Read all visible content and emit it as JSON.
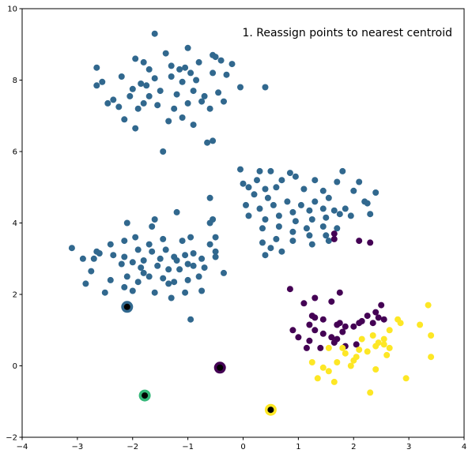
{
  "chart_data": {
    "type": "scatter",
    "title": "",
    "xlabel": "",
    "ylabel": "",
    "xlim": [
      -4,
      4
    ],
    "ylim": [
      -2,
      10
    ],
    "xticks": [
      -4,
      -3,
      -2,
      -1,
      0,
      1,
      2,
      3,
      4
    ],
    "yticks": [
      -2,
      0,
      2,
      4,
      6,
      8,
      10
    ],
    "grid": false,
    "annotation": "1. Reassign points to nearest centroid",
    "colors": {
      "cluster_blue": "#31688e",
      "cluster_purple": "#440154",
      "cluster_yellow": "#fde725",
      "cluster_green": "#35b779",
      "centroid_marker": "#000000"
    },
    "series": [
      {
        "color": "#31688e",
        "points": [
          [
            -1.6,
            9.3
          ],
          [
            -1.0,
            8.9
          ],
          [
            -1.95,
            8.6
          ],
          [
            -1.4,
            8.75
          ],
          [
            -0.5,
            8.65
          ],
          [
            -0.55,
            8.7
          ],
          [
            -0.2,
            8.45
          ],
          [
            -2.65,
            8.35
          ],
          [
            -1.8,
            8.5
          ],
          [
            -1.3,
            8.4
          ],
          [
            -0.8,
            8.5
          ],
          [
            -0.4,
            8.55
          ],
          [
            -1.7,
            8.3
          ],
          [
            -1.05,
            8.35
          ],
          [
            -2.55,
            7.95
          ],
          [
            -2.2,
            8.1
          ],
          [
            -1.85,
            7.9
          ],
          [
            -1.6,
            8.05
          ],
          [
            -1.3,
            8.1
          ],
          [
            -1.1,
            7.95
          ],
          [
            -0.95,
            8.2
          ],
          [
            -0.55,
            8.2
          ],
          [
            -0.3,
            8.15
          ],
          [
            -0.05,
            7.8
          ],
          [
            0.4,
            7.8
          ],
          [
            -2.65,
            7.85
          ],
          [
            -2.0,
            7.75
          ],
          [
            -1.7,
            7.55
          ],
          [
            -1.5,
            7.7
          ],
          [
            -1.2,
            7.6
          ],
          [
            -0.9,
            7.7
          ],
          [
            -0.7,
            7.55
          ],
          [
            -0.45,
            7.65
          ],
          [
            -0.35,
            7.4
          ],
          [
            -2.35,
            7.45
          ],
          [
            -2.05,
            7.55
          ],
          [
            -1.8,
            7.35
          ],
          [
            -1.55,
            7.3
          ],
          [
            -1.25,
            7.2
          ],
          [
            -1.0,
            7.35
          ],
          [
            -0.75,
            7.4
          ],
          [
            -0.6,
            7.2
          ],
          [
            -2.45,
            7.35
          ],
          [
            -2.25,
            7.25
          ],
          [
            -1.9,
            7.2
          ],
          [
            -2.15,
            6.9
          ],
          [
            -1.95,
            6.65
          ],
          [
            -1.35,
            6.85
          ],
          [
            -1.1,
            6.95
          ],
          [
            -0.9,
            6.75
          ],
          [
            -0.55,
            6.3
          ],
          [
            -0.65,
            6.25
          ],
          [
            -1.45,
            6.0
          ],
          [
            -1.75,
            7.85
          ],
          [
            -1.15,
            8.3
          ],
          [
            -0.85,
            8.0
          ],
          [
            -0.05,
            5.5
          ],
          [
            0.3,
            5.45
          ],
          [
            0.5,
            5.45
          ],
          [
            0.85,
            5.4
          ],
          [
            0.7,
            5.2
          ],
          [
            0.95,
            5.3
          ],
          [
            1.3,
            5.2
          ],
          [
            1.8,
            5.45
          ],
          [
            0.1,
            5.0
          ],
          [
            0.4,
            4.95
          ],
          [
            0.6,
            5.0
          ],
          [
            1.1,
            4.95
          ],
          [
            1.45,
            4.9
          ],
          [
            1.7,
            5.15
          ],
          [
            2.1,
            5.15
          ],
          [
            2.0,
            4.9
          ],
          [
            2.4,
            4.85
          ],
          [
            0.2,
            4.8
          ],
          [
            0.45,
            4.7
          ],
          [
            0.8,
            4.6
          ],
          [
            1.05,
            4.5
          ],
          [
            1.3,
            4.6
          ],
          [
            1.55,
            4.7
          ],
          [
            1.85,
            4.4
          ],
          [
            2.2,
            4.6
          ],
          [
            2.25,
            4.55
          ],
          [
            0.05,
            4.5
          ],
          [
            0.3,
            4.4
          ],
          [
            0.55,
            4.5
          ],
          [
            0.9,
            4.3
          ],
          [
            1.2,
            4.35
          ],
          [
            1.45,
            4.4
          ],
          [
            1.75,
            4.25
          ],
          [
            1.95,
            4.2
          ],
          [
            0.1,
            4.2
          ],
          [
            0.4,
            4.1
          ],
          [
            0.65,
            4.2
          ],
          [
            0.95,
            4.05
          ],
          [
            1.25,
            4.1
          ],
          [
            1.5,
            4.15
          ],
          [
            1.65,
            4.35
          ],
          [
            2.3,
            4.25
          ],
          [
            0.35,
            3.85
          ],
          [
            0.65,
            3.9
          ],
          [
            0.9,
            3.75
          ],
          [
            1.15,
            3.85
          ],
          [
            1.45,
            3.9
          ],
          [
            1.7,
            3.85
          ],
          [
            0.6,
            3.55
          ],
          [
            0.9,
            3.5
          ],
          [
            1.2,
            3.65
          ],
          [
            1.5,
            3.65
          ],
          [
            0.35,
            3.45
          ],
          [
            0.5,
            3.3
          ],
          [
            0.7,
            3.2
          ],
          [
            1.25,
            3.4
          ],
          [
            1.55,
            3.5
          ],
          [
            0.4,
            3.1
          ],
          [
            0.0,
            5.1
          ],
          [
            0.25,
            5.2
          ],
          [
            -1.6,
            4.1
          ],
          [
            -1.65,
            3.9
          ],
          [
            -2.1,
            4.0
          ],
          [
            -1.2,
            4.3
          ],
          [
            -0.55,
            4.1
          ],
          [
            -0.6,
            4.7
          ],
          [
            -0.6,
            4.0
          ],
          [
            -3.1,
            3.3
          ],
          [
            -2.9,
            3.0
          ],
          [
            -2.65,
            3.2
          ],
          [
            -2.6,
            3.15
          ],
          [
            -2.4,
            3.4
          ],
          [
            -2.15,
            3.5
          ],
          [
            -1.95,
            3.6
          ],
          [
            -1.7,
            3.4
          ],
          [
            -1.45,
            3.55
          ],
          [
            -1.1,
            3.5
          ],
          [
            -0.95,
            3.6
          ],
          [
            -0.5,
            3.6
          ],
          [
            -0.6,
            3.4
          ],
          [
            -0.5,
            3.2
          ],
          [
            -0.5,
            3.05
          ],
          [
            -2.7,
            3.0
          ],
          [
            -2.35,
            3.1
          ],
          [
            -2.15,
            3.05
          ],
          [
            -1.9,
            3.25
          ],
          [
            -1.65,
            3.2
          ],
          [
            -1.4,
            3.25
          ],
          [
            -1.25,
            3.05
          ],
          [
            -1.05,
            3.1
          ],
          [
            -0.9,
            3.15
          ],
          [
            -0.75,
            3.0
          ],
          [
            -2.75,
            2.65
          ],
          [
            -2.2,
            2.85
          ],
          [
            -2.0,
            2.9
          ],
          [
            -1.8,
            2.95
          ],
          [
            -1.5,
            3.0
          ],
          [
            -1.2,
            2.95
          ],
          [
            -1.0,
            2.85
          ],
          [
            -2.85,
            2.3
          ],
          [
            -2.4,
            2.4
          ],
          [
            -2.1,
            2.5
          ],
          [
            -1.85,
            2.75
          ],
          [
            -1.55,
            2.8
          ],
          [
            -1.35,
            2.7
          ],
          [
            -1.15,
            2.7
          ],
          [
            -0.9,
            2.8
          ],
          [
            -0.7,
            2.75
          ],
          [
            -0.35,
            2.6
          ],
          [
            -2.15,
            2.2
          ],
          [
            -1.9,
            2.35
          ],
          [
            -1.7,
            2.5
          ],
          [
            -1.45,
            2.45
          ],
          [
            -1.25,
            2.35
          ],
          [
            -1.0,
            2.4
          ],
          [
            -0.8,
            2.5
          ],
          [
            -2.5,
            2.05
          ],
          [
            -2.0,
            2.1
          ],
          [
            -1.6,
            2.05
          ],
          [
            -1.3,
            1.9
          ],
          [
            -1.05,
            2.05
          ],
          [
            -0.75,
            2.1
          ],
          [
            -0.95,
            1.3
          ],
          [
            -1.8,
            2.6
          ],
          [
            -1.35,
            2.3
          ]
        ]
      },
      {
        "color": "#440154",
        "points": [
          [
            1.65,
            3.7
          ],
          [
            1.65,
            3.55
          ],
          [
            2.1,
            3.5
          ],
          [
            2.3,
            3.45
          ],
          [
            0.85,
            2.15
          ],
          [
            1.3,
            1.9
          ],
          [
            1.6,
            1.8
          ],
          [
            1.75,
            2.05
          ],
          [
            1.1,
            1.75
          ],
          [
            2.5,
            1.7
          ],
          [
            1.25,
            1.4
          ],
          [
            1.3,
            1.35
          ],
          [
            1.45,
            1.3
          ],
          [
            1.2,
            1.15
          ],
          [
            1.75,
            1.2
          ],
          [
            1.7,
            1.15
          ],
          [
            1.85,
            1.1
          ],
          [
            2.25,
            1.4
          ],
          [
            2.45,
            1.35
          ],
          [
            2.4,
            1.5
          ],
          [
            0.9,
            1.0
          ],
          [
            1.0,
            0.8
          ],
          [
            1.2,
            0.7
          ],
          [
            1.45,
            0.9
          ],
          [
            1.6,
            0.8
          ],
          [
            1.8,
            0.95
          ],
          [
            2.0,
            1.1
          ],
          [
            2.15,
            1.25
          ],
          [
            2.55,
            1.3
          ],
          [
            1.4,
            0.5
          ],
          [
            1.65,
            0.65
          ],
          [
            1.85,
            0.55
          ],
          [
            2.1,
            1.2
          ],
          [
            2.35,
            1.2
          ],
          [
            1.15,
            0.5
          ],
          [
            1.7,
            0.75
          ],
          [
            1.3,
            1.0
          ],
          [
            2.05,
            0.6
          ]
        ]
      },
      {
        "color": "#fde725",
        "points": [
          [
            3.35,
            1.7
          ],
          [
            2.85,
            1.2
          ],
          [
            3.2,
            1.15
          ],
          [
            3.4,
            0.85
          ],
          [
            2.65,
            1.0
          ],
          [
            2.35,
            0.85
          ],
          [
            2.15,
            0.75
          ],
          [
            2.55,
            0.75
          ],
          [
            2.4,
            0.55
          ],
          [
            2.1,
            0.45
          ],
          [
            2.25,
            0.4
          ],
          [
            2.55,
            0.6
          ],
          [
            2.65,
            0.5
          ],
          [
            2.6,
            0.3
          ],
          [
            1.85,
            0.35
          ],
          [
            2.0,
            0.15
          ],
          [
            1.55,
            0.5
          ],
          [
            1.8,
            0.5
          ],
          [
            1.25,
            0.1
          ],
          [
            1.45,
            -0.05
          ],
          [
            1.7,
            0.1
          ],
          [
            1.95,
            0.0
          ],
          [
            2.4,
            -0.1
          ],
          [
            1.55,
            -0.15
          ],
          [
            1.35,
            -0.35
          ],
          [
            1.65,
            -0.45
          ],
          [
            2.95,
            -0.35
          ],
          [
            3.4,
            0.25
          ],
          [
            2.3,
            -0.75
          ],
          [
            2.8,
            1.3
          ],
          [
            2.05,
            0.25
          ],
          [
            2.45,
            0.65
          ]
        ]
      }
    ],
    "centroids": [
      {
        "x": -2.1,
        "y": 1.65,
        "color": "#31688e"
      },
      {
        "x": -0.42,
        "y": -0.05,
        "color": "#440154"
      },
      {
        "x": -1.78,
        "y": -0.83,
        "color": "#35b779"
      },
      {
        "x": 0.5,
        "y": -1.23,
        "color": "#fde725"
      }
    ]
  }
}
